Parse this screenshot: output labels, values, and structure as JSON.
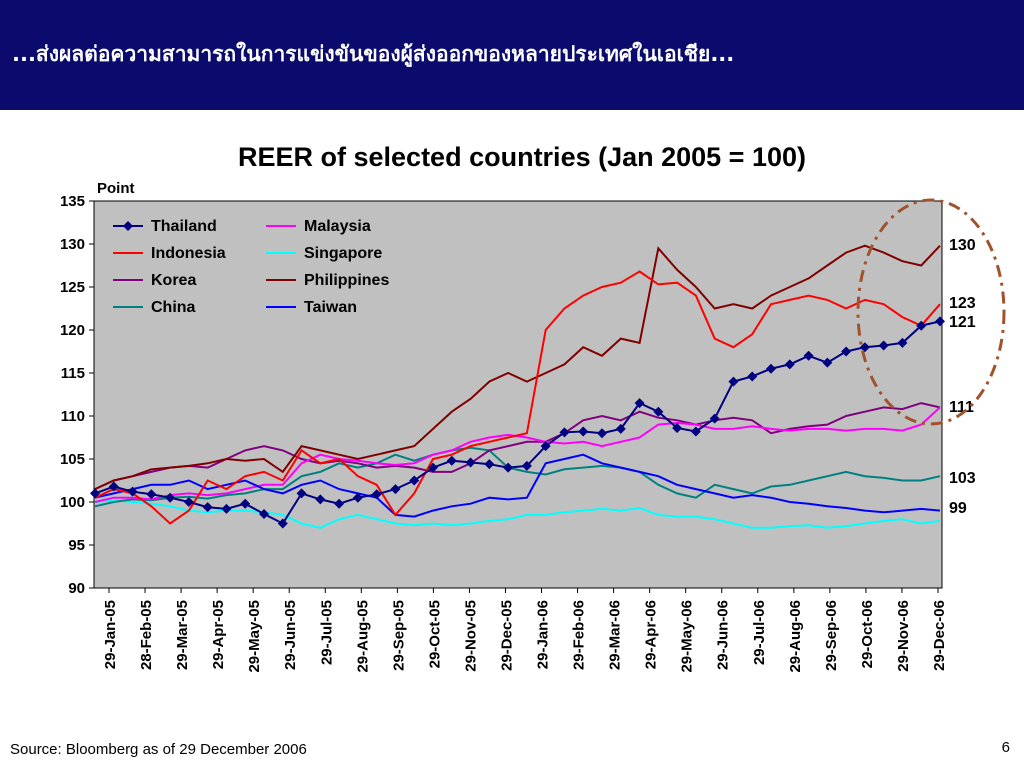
{
  "slide": {
    "banner_title": "...ส่งผลต่อความสามารถในการแข่งขันของผู้ส่งออกของหลายประเทศในเอเชีย...",
    "source": "Source: Bloomberg as of 29 December 2006",
    "page_number": "6",
    "banner_color": "#0b0b6e"
  },
  "chart_data": {
    "type": "line",
    "title": "REER of selected countries (Jan 2005 = 100)",
    "ylabel": "Point",
    "xlabel": "",
    "ylim": [
      90,
      135
    ],
    "yticks": [
      "90",
      "95",
      "100",
      "105",
      "110",
      "115",
      "120",
      "125",
      "130",
      "135"
    ],
    "x_tick_labels": [
      "29-Jan-05",
      "28-Feb-05",
      "29-Mar-05",
      "29-Apr-05",
      "29-May-05",
      "29-Jun-05",
      "29-Jul-05",
      "29-Aug-05",
      "29-Sep-05",
      "29-Oct-05",
      "29-Nov-05",
      "29-Dec-05",
      "29-Jan-06",
      "29-Feb-06",
      "29-Mar-06",
      "29-Apr-06",
      "29-May-06",
      "29-Jun-06",
      "29-Jul-06",
      "29-Aug-06",
      "29-Sep-06",
      "29-Oct-06",
      "29-Nov-06",
      "29-Dec-06"
    ],
    "plot_background": "#c0c0c0",
    "grid": false,
    "legend_position": "top-left",
    "series": [
      {
        "name": "Thailand",
        "color": "#000080",
        "marker": "diamond",
        "values": [
          101.0,
          101.8,
          101.2,
          100.9,
          100.5,
          100.0,
          99.4,
          99.2,
          99.8,
          98.6,
          97.5,
          101.0,
          100.3,
          99.8,
          100.5,
          100.9,
          101.5,
          102.5,
          104.0,
          104.8,
          104.6,
          104.4,
          104.0,
          104.2,
          106.5,
          108.1,
          108.2,
          108.0,
          108.5,
          111.5,
          110.5,
          108.6,
          108.2,
          109.7,
          114.0,
          114.6,
          115.5,
          116.0,
          117.0,
          116.2,
          117.5,
          118.0,
          118.2,
          118.5,
          120.5,
          121.0
        ]
      },
      {
        "name": "Indonesia",
        "color": "#ff0000",
        "marker": "none",
        "values": [
          100.5,
          101.5,
          101.0,
          99.5,
          97.5,
          99.0,
          102.5,
          101.5,
          103.0,
          103.5,
          102.5,
          106.0,
          104.5,
          105.0,
          103.0,
          102.0,
          98.5,
          101.0,
          105.0,
          105.5,
          106.5,
          107.0,
          107.5,
          108.0,
          120.0,
          122.5,
          124.0,
          125.0,
          125.5,
          126.8,
          125.3,
          125.5,
          124.0,
          119.0,
          118.0,
          119.5,
          123.0,
          123.5,
          124.0,
          123.5,
          122.5,
          123.5,
          123.0,
          121.5,
          120.5,
          123.0
        ]
      },
      {
        "name": "Korea",
        "color": "#800080",
        "marker": "none",
        "values": [
          101.5,
          102.5,
          103.0,
          103.5,
          104.0,
          104.2,
          104.0,
          105.0,
          106.0,
          106.5,
          106.0,
          105.0,
          104.5,
          104.8,
          104.5,
          104.0,
          104.2,
          104.0,
          103.5,
          103.5,
          104.5,
          106.0,
          106.5,
          107.0,
          107.0,
          108.0,
          109.5,
          110.0,
          109.5,
          110.5,
          109.8,
          109.5,
          109.0,
          109.5,
          109.8,
          109.5,
          108.0,
          108.5,
          108.8,
          109.0,
          110.0,
          110.5,
          111.0,
          110.8,
          111.5,
          111.0
        ]
      },
      {
        "name": "China",
        "color": "#008080",
        "marker": "none",
        "values": [
          99.5,
          100.0,
          100.3,
          100.2,
          100.5,
          100.6,
          100.4,
          100.8,
          101.0,
          101.5,
          101.5,
          103.0,
          103.5,
          104.5,
          104.0,
          104.5,
          105.5,
          104.8,
          105.5,
          106.0,
          106.3,
          106.0,
          104.0,
          103.5,
          103.2,
          103.8,
          104.0,
          104.2,
          104.0,
          103.5,
          102.0,
          101.0,
          100.5,
          102.0,
          101.5,
          101.0,
          101.8,
          102.0,
          102.5,
          103.0,
          103.5,
          103.0,
          102.8,
          102.5,
          102.5,
          103.0
        ]
      },
      {
        "name": "Malaysia",
        "color": "#ff00ff",
        "marker": "none",
        "values": [
          100.0,
          100.5,
          100.5,
          100.3,
          100.8,
          101.0,
          100.8,
          101.0,
          101.5,
          102.0,
          102.0,
          104.5,
          105.5,
          105.0,
          104.8,
          104.5,
          104.3,
          104.5,
          105.5,
          106.0,
          107.0,
          107.5,
          107.8,
          107.5,
          107.0,
          106.8,
          107.0,
          106.5,
          107.0,
          107.5,
          109.0,
          109.2,
          109.0,
          108.5,
          108.5,
          108.8,
          108.5,
          108.3,
          108.5,
          108.5,
          108.3,
          108.5,
          108.5,
          108.3,
          109.0,
          111.0
        ]
      },
      {
        "name": "Singapore",
        "color": "#00ffff",
        "marker": "none",
        "values": [
          100.0,
          100.2,
          100.0,
          99.8,
          99.5,
          99.0,
          98.8,
          99.0,
          99.0,
          98.8,
          98.5,
          97.5,
          97.0,
          98.0,
          98.5,
          98.0,
          97.5,
          97.3,
          97.5,
          97.3,
          97.5,
          97.8,
          98.0,
          98.5,
          98.5,
          98.8,
          99.0,
          99.2,
          99.0,
          99.3,
          98.5,
          98.3,
          98.3,
          98.0,
          97.5,
          97.0,
          97.0,
          97.2,
          97.3,
          97.0,
          97.2,
          97.5,
          97.8,
          98.0,
          97.5,
          97.8
        ]
      },
      {
        "name": "Philippines",
        "color": "#800000",
        "marker": "none",
        "values": [
          101.5,
          102.5,
          103.0,
          103.8,
          104.0,
          104.2,
          104.5,
          105.0,
          104.8,
          105.0,
          103.5,
          106.5,
          106.0,
          105.5,
          105.0,
          105.5,
          106.0,
          106.5,
          108.5,
          110.5,
          112.0,
          114.0,
          115.0,
          114.0,
          115.0,
          116.0,
          118.0,
          117.0,
          119.0,
          118.5,
          129.5,
          127.0,
          125.0,
          122.5,
          123.0,
          122.5,
          124.0,
          125.0,
          126.0,
          127.5,
          129.0,
          129.8,
          129.0,
          128.0,
          127.5,
          129.8
        ]
      },
      {
        "name": "Taiwan",
        "color": "#0000ff",
        "marker": "none",
        "values": [
          100.5,
          101.0,
          101.5,
          102.0,
          102.0,
          102.5,
          101.5,
          102.0,
          102.5,
          101.5,
          101.0,
          102.0,
          102.5,
          101.5,
          101.0,
          100.5,
          98.5,
          98.3,
          99.0,
          99.5,
          99.8,
          100.5,
          100.3,
          100.5,
          104.5,
          105.0,
          105.5,
          104.5,
          104.0,
          103.5,
          103.0,
          102.0,
          101.5,
          101.0,
          100.5,
          100.8,
          100.5,
          100.0,
          99.8,
          99.5,
          99.3,
          99.0,
          98.8,
          99.0,
          99.2,
          99.0
        ]
      }
    ],
    "annotations": {
      "end_labels": [
        "130",
        "123",
        "121",
        "111",
        "103",
        "99"
      ],
      "highlight": "dash-dot ellipse around end values"
    },
    "annotation_color": "#a0522d"
  }
}
